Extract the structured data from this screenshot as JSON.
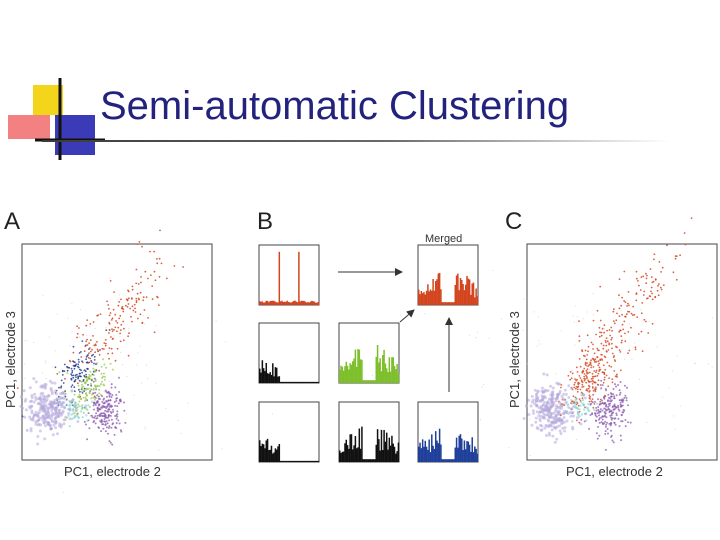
{
  "slide": {
    "title": "Semi-automatic Clustering"
  },
  "figure": {
    "panel_labels": [
      "A",
      "B",
      "C"
    ],
    "panel_a": {
      "xlabel": "PC1, electrode 2",
      "ylabel": "PC1, electrode 3"
    },
    "panel_b": {
      "merged_label": "Merged"
    },
    "panel_c": {
      "xlabel": "PC1, electrode 2",
      "ylabel": "PC1, electrode 3"
    },
    "colors": {
      "orange": "#d2451e",
      "navy": "#1e2f8c",
      "green": "#7dbf2a",
      "purple": "#8b5bb0",
      "lavender": "#b4a8da",
      "cyan": "#7fd6d0",
      "black": "#111111",
      "blue": "#1f3f9a"
    }
  }
}
